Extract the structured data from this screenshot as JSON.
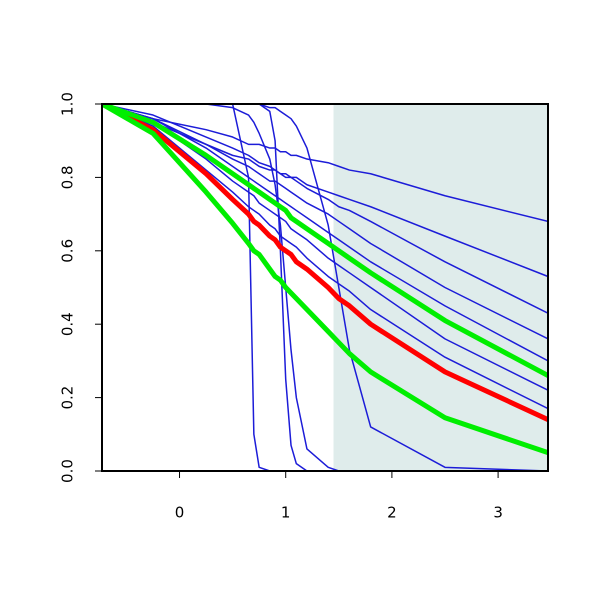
{
  "chart_data": {
    "type": "line",
    "x": [
      -0.73,
      -0.25,
      0.25,
      0.5,
      0.65,
      0.7,
      0.75,
      0.85,
      0.9,
      0.95,
      1.0,
      1.05,
      1.1,
      1.2,
      1.4,
      1.5,
      1.6,
      1.8,
      2.5,
      3.47
    ],
    "xlim": [
      -0.73,
      3.47
    ],
    "xticks": [
      0,
      1,
      2,
      3
    ],
    "ylim": [
      0,
      1
    ],
    "yticks": [
      {
        "value": 0,
        "label": "0.0"
      },
      {
        "value": 0.2,
        "label": "0.2"
      },
      {
        "value": 0.4,
        "label": "0.4"
      },
      {
        "value": 0.6,
        "label": "0.6"
      },
      {
        "value": 0.8,
        "label": "0.8"
      },
      {
        "value": 1,
        "label": "1.0"
      }
    ],
    "highlight_xrange": [
      1.45,
      3.47
    ],
    "highlight_color": "#dfeceb",
    "series": [
      {
        "color": "#1c1cd8",
        "width": 1.5,
        "values": [
          1,
          0.96,
          0.93,
          0.91,
          0.89,
          0.89,
          0.89,
          0.88,
          0.88,
          0.87,
          0.87,
          0.86,
          0.86,
          0.85,
          0.84,
          0.83,
          0.82,
          0.81,
          0.75,
          0.68
        ]
      },
      {
        "color": "#1c1cd8",
        "width": 1.5,
        "values": [
          1,
          0.95,
          0.89,
          0.86,
          0.85,
          0.84,
          0.83,
          0.82,
          0.82,
          0.81,
          0.81,
          0.8,
          0.8,
          0.78,
          0.76,
          0.75,
          0.74,
          0.72,
          0.64,
          0.53
        ]
      },
      {
        "color": "#1c1cd8",
        "width": 1.5,
        "values": [
          1,
          0.97,
          0.91,
          0.88,
          0.86,
          0.85,
          0.84,
          0.83,
          0.82,
          0.81,
          0.8,
          0.8,
          0.79,
          0.77,
          0.74,
          0.72,
          0.71,
          0.68,
          0.57,
          0.43
        ]
      },
      {
        "color": "#1c1cd8",
        "width": 1.5,
        "values": [
          1,
          0.96,
          0.89,
          0.85,
          0.83,
          0.82,
          0.81,
          0.79,
          0.79,
          0.78,
          0.77,
          0.76,
          0.75,
          0.73,
          0.7,
          0.68,
          0.66,
          0.62,
          0.5,
          0.36
        ]
      },
      {
        "color": "#1c1cd8",
        "width": 1.5,
        "values": [
          1,
          0.96,
          0.88,
          0.83,
          0.8,
          0.79,
          0.78,
          0.76,
          0.75,
          0.74,
          0.73,
          0.72,
          0.71,
          0.69,
          0.65,
          0.63,
          0.61,
          0.57,
          0.45,
          0.3
        ]
      },
      {
        "color": "#1c1cd8",
        "width": 1.5,
        "values": [
          1,
          0.95,
          0.85,
          0.79,
          0.76,
          0.75,
          0.73,
          0.71,
          0.7,
          0.69,
          0.68,
          0.66,
          0.65,
          0.63,
          0.58,
          0.56,
          0.54,
          0.5,
          0.36,
          0.22
        ]
      },
      {
        "color": "#1c1cd8",
        "width": 1.5,
        "values": [
          1,
          0.94,
          0.82,
          0.76,
          0.72,
          0.71,
          0.7,
          0.67,
          0.66,
          0.64,
          0.63,
          0.62,
          0.61,
          0.58,
          0.53,
          0.51,
          0.49,
          0.44,
          0.31,
          0.17
        ]
      },
      {
        "color": "#1c1cd8",
        "width": 1.5,
        "values": [
          1,
          1,
          1,
          1,
          0.8,
          0.1,
          0.01,
          0,
          0,
          0,
          0,
          0,
          0,
          0,
          0,
          0,
          0,
          0,
          0,
          0
        ]
      },
      {
        "color": "#1c1cd8",
        "width": 1.5,
        "values": [
          1,
          1,
          1,
          1,
          1,
          1,
          1,
          0.98,
          0.9,
          0.6,
          0.25,
          0.07,
          0.02,
          0,
          0,
          0,
          0,
          0,
          0,
          0
        ]
      },
      {
        "color": "#1c1cd8",
        "width": 1.5,
        "values": [
          1,
          1,
          1,
          0.99,
          0.97,
          0.95,
          0.92,
          0.85,
          0.78,
          0.67,
          0.5,
          0.33,
          0.2,
          0.06,
          0.01,
          0,
          0,
          0,
          0,
          0
        ]
      },
      {
        "color": "#1c1cd8",
        "width": 1.5,
        "values": [
          1,
          1,
          1,
          1,
          1,
          1,
          1,
          0.99,
          0.99,
          0.98,
          0.97,
          0.96,
          0.94,
          0.88,
          0.67,
          0.5,
          0.33,
          0.12,
          0.01,
          0
        ]
      },
      {
        "color": "#ff0000",
        "width": 5,
        "values": [
          1,
          0.93,
          0.81,
          0.74,
          0.7,
          0.68,
          0.67,
          0.64,
          0.63,
          0.61,
          0.6,
          0.59,
          0.57,
          0.55,
          0.5,
          0.47,
          0.45,
          0.4,
          0.27,
          0.14
        ]
      },
      {
        "color": "#00ee00",
        "width": 5,
        "values": [
          1,
          0.95,
          0.86,
          0.81,
          0.78,
          0.77,
          0.76,
          0.74,
          0.73,
          0.72,
          0.71,
          0.69,
          0.68,
          0.66,
          0.62,
          0.6,
          0.58,
          0.54,
          0.41,
          0.26
        ]
      },
      {
        "color": "#00ee00",
        "width": 5,
        "values": [
          1,
          0.92,
          0.76,
          0.675,
          0.62,
          0.6,
          0.59,
          0.55,
          0.53,
          0.52,
          0.5,
          0.485,
          0.47,
          0.44,
          0.38,
          0.35,
          0.32,
          0.27,
          0.145,
          0.05
        ]
      }
    ]
  }
}
